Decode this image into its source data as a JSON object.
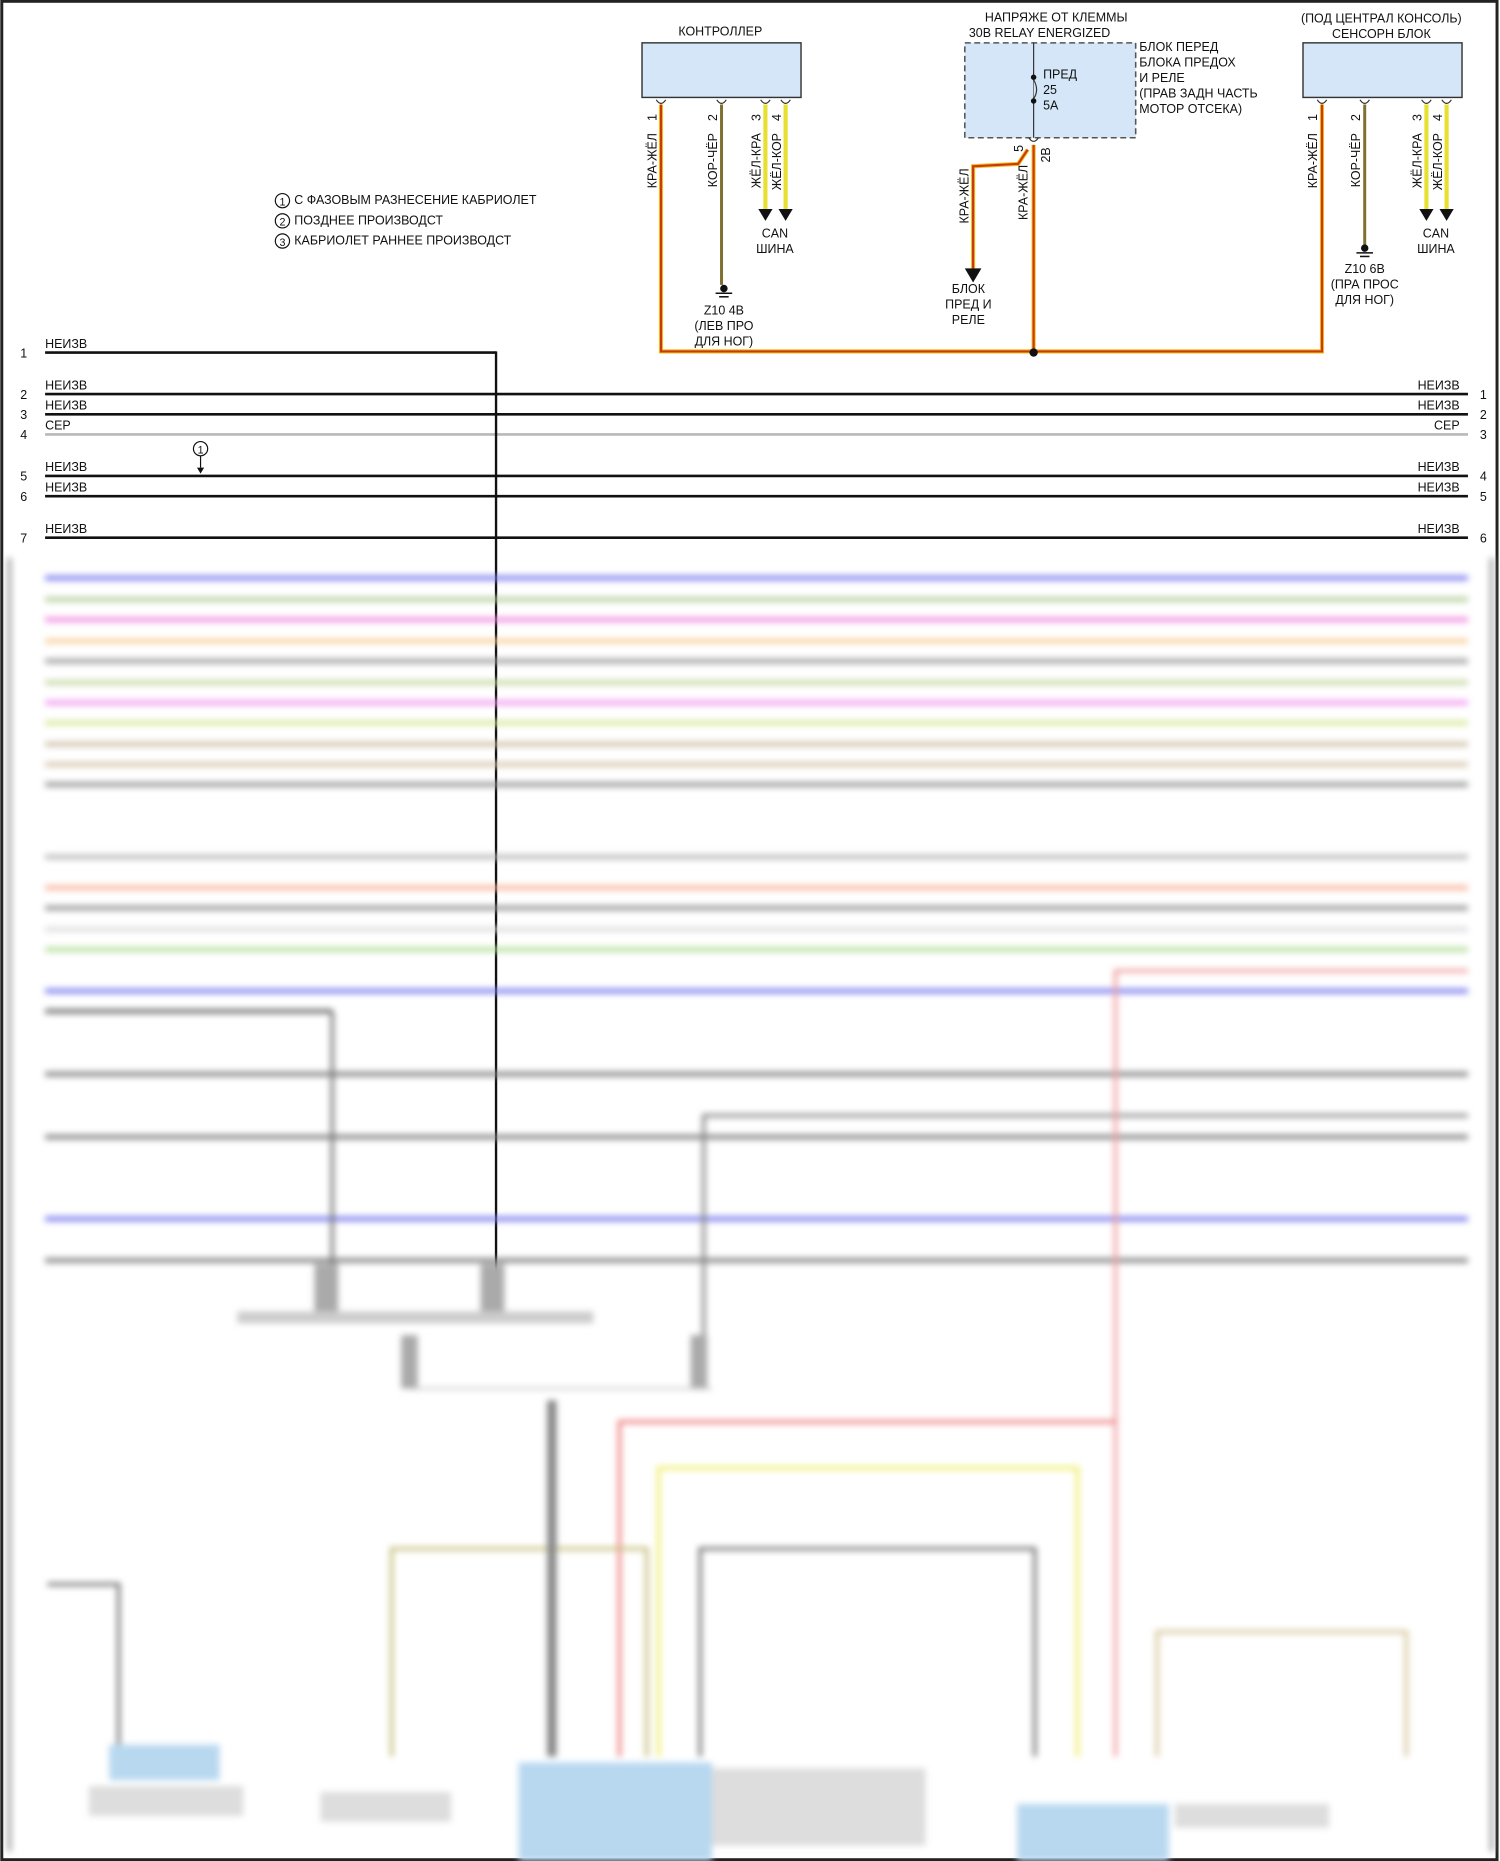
{
  "colors": {
    "red_yellow_wire": "#d8400c",
    "brown_black_wire": "#7d7030",
    "yellow_wire": "#e8e030",
    "module_fill": "#d4e6f7",
    "black_wire": "#111111",
    "grey_wire": "#b8b8b8"
  },
  "controller": {
    "title": "КОНТРОЛЛЕР",
    "pins": [
      {
        "num": "1",
        "wire": "КРА-ЖЁЛ"
      },
      {
        "num": "2",
        "wire": "КОР-ЧЁР"
      },
      {
        "num": "3",
        "wire": "ЖЁЛ-КРА"
      },
      {
        "num": "4",
        "wire": "ЖЁЛ-КОР"
      }
    ],
    "ground": [
      "Z10 4B",
      "(ЛЕВ ПРО",
      "ДЛЯ НОГ)"
    ],
    "can": [
      "CAN",
      "ШИНА"
    ]
  },
  "fuse_block": {
    "header": [
      "НАПРЯЖЕ ОТ КЛЕММЫ",
      "30B RELAY ENERGIZED"
    ],
    "desc": [
      "БЛОК ПЕРЕД",
      "БЛОКА ПРЕДОХ",
      "И РЕЛЕ",
      "(ПРАВ ЗАДН ЧАСТЬ",
      "МОТОР ОТСЕКА)"
    ],
    "fuse": [
      "ПРЕД",
      "25",
      "5A"
    ],
    "pin_num": "5",
    "connector": "2B",
    "wire_left": "КРА-ЖЁЛ",
    "wire_down": "КРА-ЖЁЛ",
    "dest": [
      "БЛОК",
      "ПРЕД И",
      "РЕЛЕ"
    ]
  },
  "sensor": {
    "header": [
      "(ПОД ЦЕНТРАЛ КОНСОЛЬ)",
      "СЕНСОРН БЛОК"
    ],
    "pins": [
      {
        "num": "1",
        "wire": "КРА-ЖЁЛ"
      },
      {
        "num": "2",
        "wire": "КОР-ЧЁР"
      },
      {
        "num": "3",
        "wire": "ЖЁЛ-КРА"
      },
      {
        "num": "4",
        "wire": "ЖЁЛ-КОР"
      }
    ],
    "ground": [
      "Z10 6B",
      "(ПРА ПРОС",
      "ДЛЯ НОГ)"
    ],
    "can": [
      "CAN",
      "ШИНА"
    ]
  },
  "legend": [
    {
      "num": "1",
      "text": "С ФАЗОВЫМ РАЗНЕСЕНИЕ КАБРИОЛЕТ"
    },
    {
      "num": "2",
      "text": "ПОЗДНЕЕ ПРОИЗВОДСТ"
    },
    {
      "num": "3",
      "text": "КАБРИОЛЕТ РАННЕЕ ПРОИЗВОДСТ"
    }
  ],
  "harness_left": [
    {
      "num": "1",
      "label": "НЕИЗВ",
      "color": "#111111"
    },
    {
      "num": "2",
      "label": "НЕИЗВ",
      "color": "#111111"
    },
    {
      "num": "3",
      "label": "НЕИЗВ",
      "color": "#111111"
    },
    {
      "num": "4",
      "label": "СЕР",
      "color": "#b8b8b8"
    },
    {
      "num": "5",
      "label": "НЕИЗВ",
      "color": "#111111"
    },
    {
      "num": "6",
      "label": "НЕИЗВ",
      "color": "#111111"
    },
    {
      "num": "7",
      "label": "НЕИЗВ",
      "color": "#111111"
    }
  ],
  "harness_right": [
    {
      "num": "1",
      "label": "НЕИЗВ"
    },
    {
      "num": "2",
      "label": "НЕИЗВ"
    },
    {
      "num": "3",
      "label": "СЕР"
    },
    {
      "num": "4",
      "label": "НЕИЗВ"
    },
    {
      "num": "5",
      "label": "НЕИЗВ"
    },
    {
      "num": "6",
      "label": "НЕИЗВ"
    }
  ],
  "marker": "1"
}
